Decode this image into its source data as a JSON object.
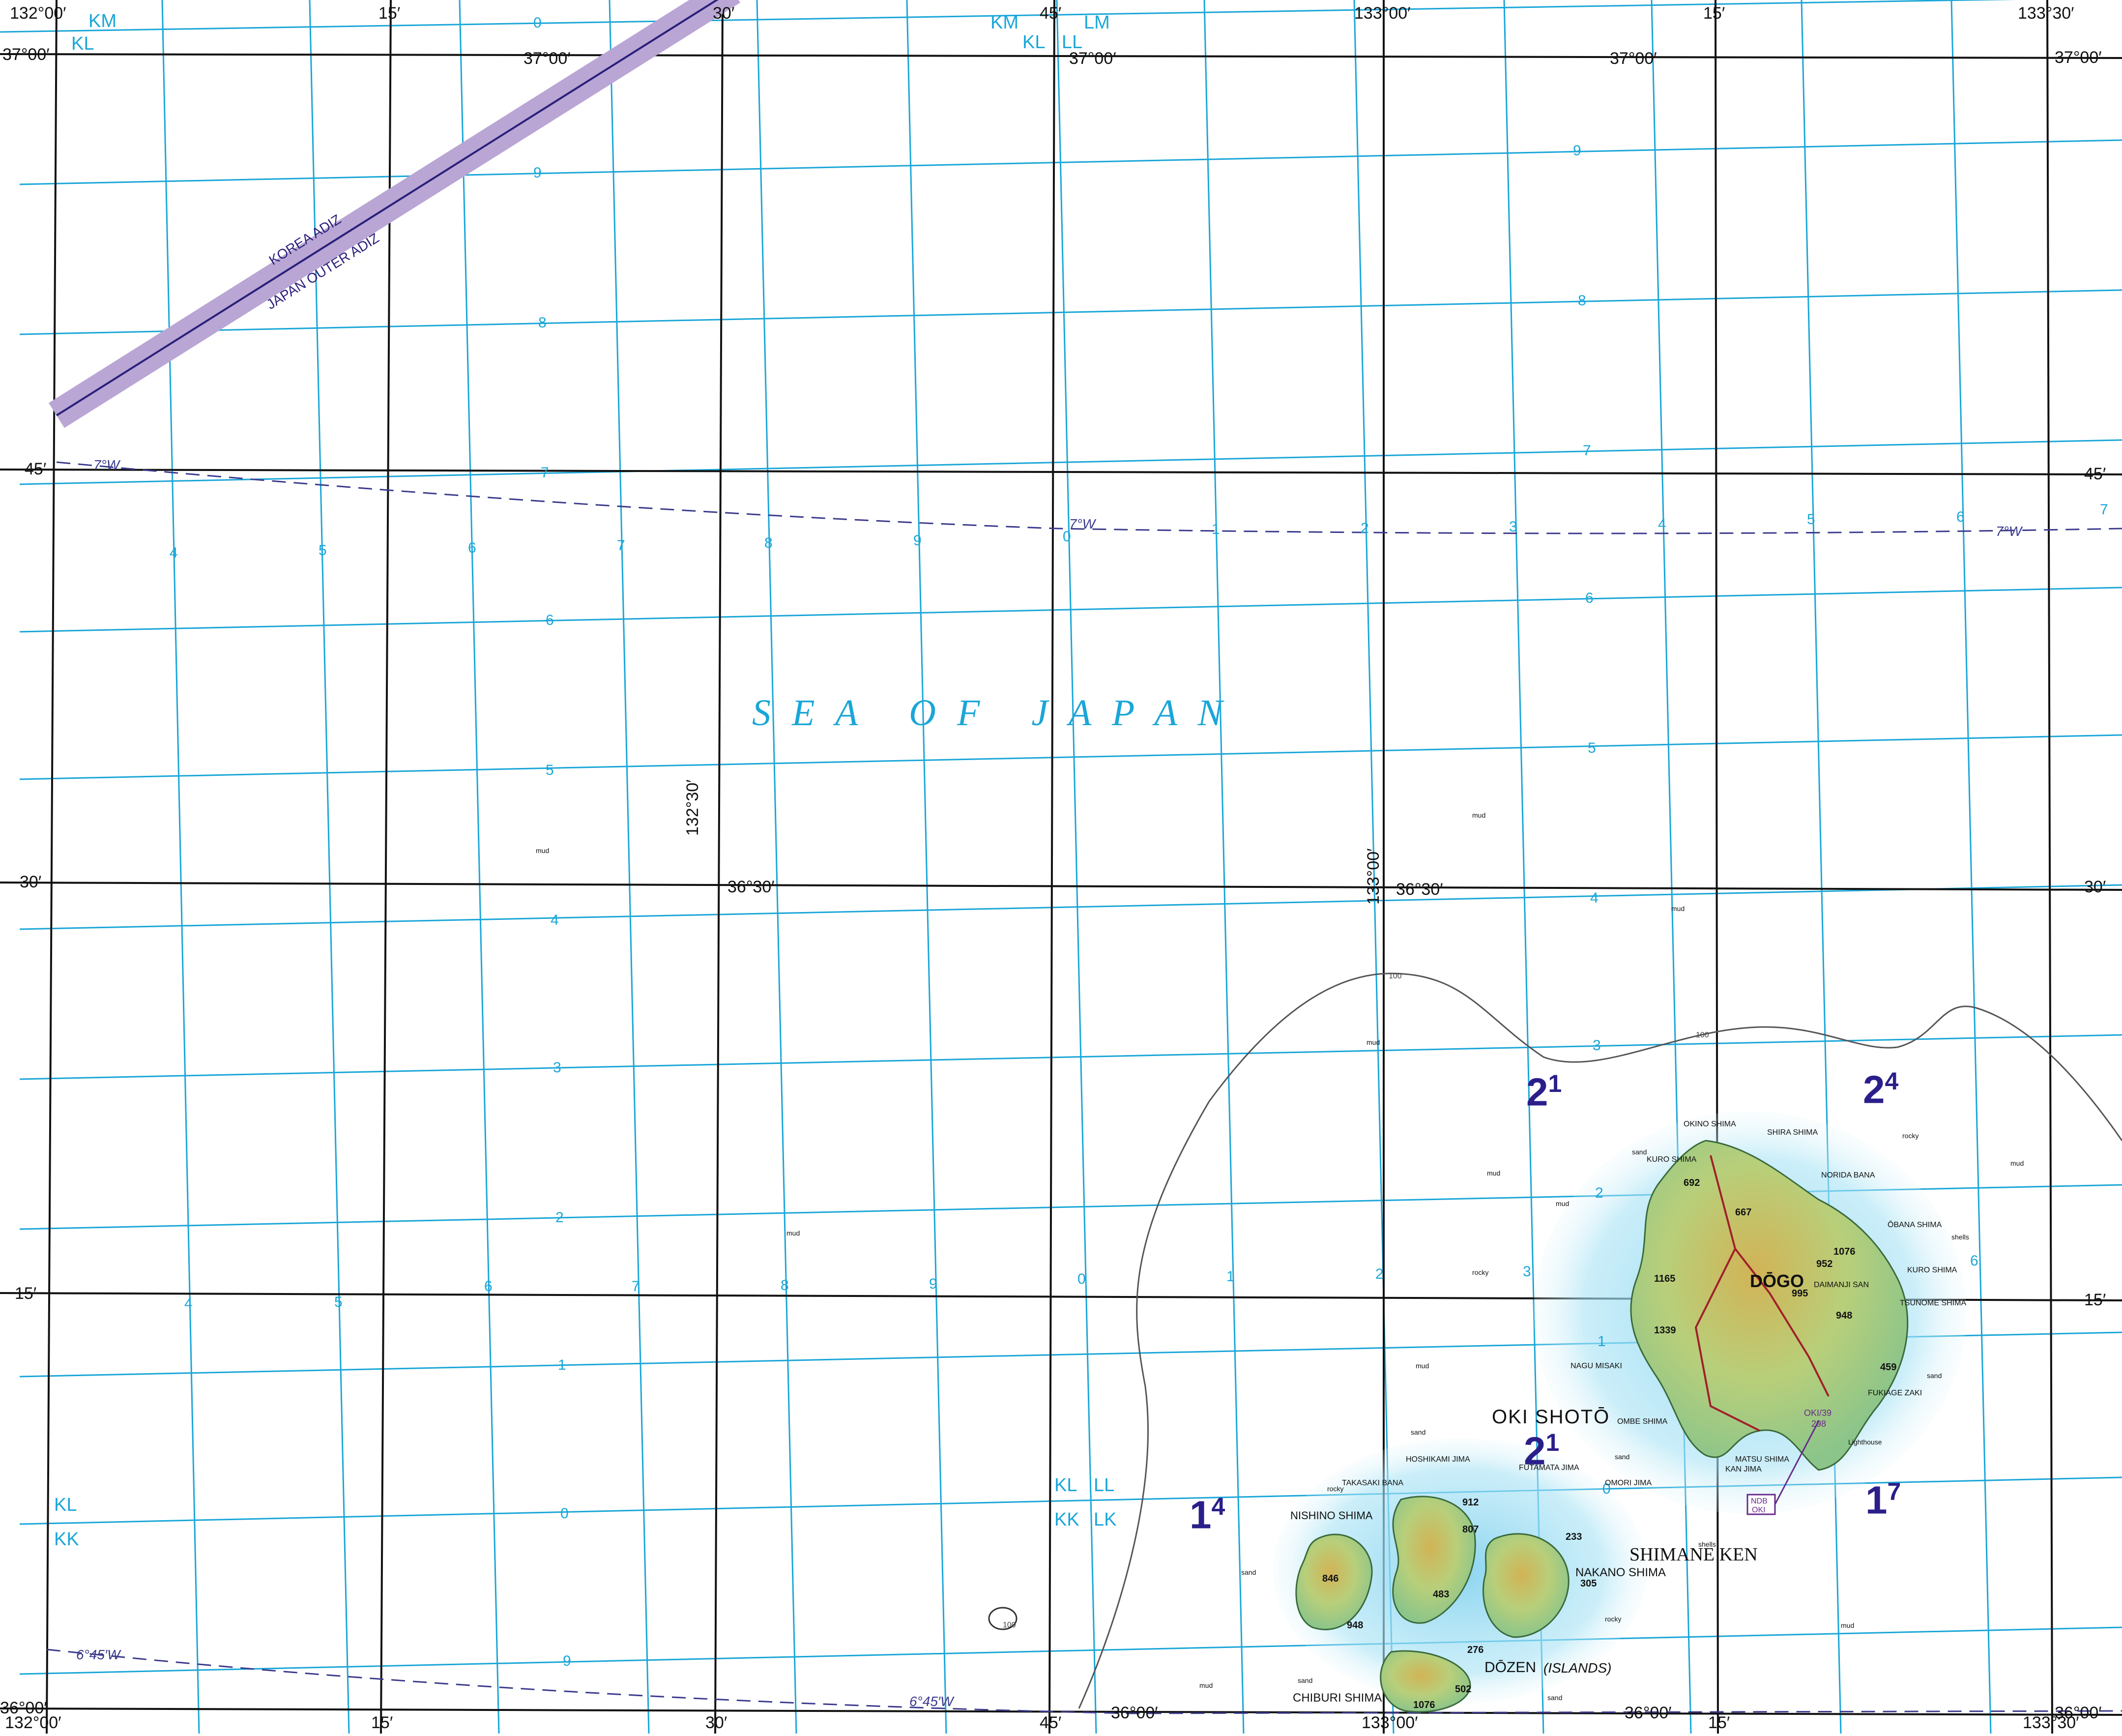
{
  "sea_label": "S E A   O F   J A P A N",
  "adiz": {
    "korea": "KOREA  ADIZ",
    "japan": "JAPAN  OUTER  ADIZ"
  },
  "magnetic_variation": {
    "seven_w": "7°W",
    "six45_w": "6°45′W"
  },
  "grid_zone_labels": {
    "km": "KM",
    "kl": "KL",
    "lm": "LM",
    "ll": "LL",
    "kk": "KK",
    "lk": "LK"
  },
  "lon_top": [
    "132°00′",
    "15′",
    "30′",
    "45′",
    "133°00′",
    "15′",
    "133°30′"
  ],
  "lon_bottom": [
    "132°00′",
    "15′",
    "30′",
    "45′",
    "133°00′",
    "15′",
    "133°30′"
  ],
  "lat_left": [
    "37°00′",
    "45′",
    "30′",
    "15′",
    "36°00′"
  ],
  "lat_right": [
    "37°00′",
    "45′",
    "30′",
    "15′",
    "36°00′"
  ],
  "lat_inner": [
    "37°00′",
    "36°30′",
    "36°00′"
  ],
  "lon_inner": [
    "132°30′",
    "133°00′"
  ],
  "grid_numbers": {
    "rows": [
      "0",
      "9",
      "8",
      "7",
      "6",
      "5",
      "4",
      "3",
      "2",
      "1",
      "0",
      "9"
    ],
    "cols": [
      "4",
      "5",
      "6",
      "7",
      "8",
      "9",
      "0",
      "1",
      "2",
      "3",
      "4",
      "5",
      "6",
      "7"
    ]
  },
  "place_names": {
    "oki_shoto": "OKI  SHOTŌ",
    "dogo": "DŌGO",
    "dozen": "DŌZEN",
    "dozen_islands": "(ISLANDS)",
    "shimane_ken": "SHIMANE  KEN",
    "nishino_shima": "NISHINO  SHIMA",
    "nakano_shima": "NAKANO  SHIMA",
    "chiburi_shima": "CHIBURI  SHIMA",
    "shira_shima": "SHIRA SHIMA",
    "okino_shima": "OKINO SHIMA",
    "kuro_shima": "KURO SHIMA",
    "norida_bana": "NORIDA BANA",
    "obana_shima": "ŌBANA SHIMA",
    "tsuno_shima": "TSUNOME SHIMA",
    "fukiage_zaki": "FUKIAGE ZAKI",
    "omori_jima": "OMORI JIMA",
    "futamata_jima": "FUTAMATA JIMA",
    "hoshikami_jima": "HOSHIKAMI JIMA",
    "takasaki_bana": "TAKASAKI BANA",
    "nagu_misaki": "NAGU MISAKI",
    "ombe_shima": "OMBE SHIMA",
    "kan_jima": "KAN JIMA",
    "matsu_shima": "MATSU SHIMA",
    "daimanji_san": "DAIMANJI SAN"
  },
  "elevations": {
    "e1": "1076",
    "e2": "952",
    "e3": "995",
    "e4": "948",
    "e5": "1339",
    "e6": "1165",
    "e7": "692",
    "e8": "667",
    "e9": "459",
    "e10": "912",
    "e11": "846",
    "e12": "948",
    "e13": "483",
    "e14": "807",
    "e15": "233",
    "e16": "305",
    "e17": "502",
    "e18": "276",
    "e19": "1076"
  },
  "bottom_notes": {
    "mud": "mud",
    "rocky": "rocky",
    "sand": "sand",
    "shells": "shells"
  },
  "contour_label": "100",
  "navaid": {
    "name": "OKI/39",
    "freq": "298",
    "ndb": "NDB",
    "ndb_id": "OKI"
  },
  "lighthouse": "Lighthouse",
  "sheet_numbers": {
    "a": "2",
    "a_sup": "1",
    "b": "2",
    "b_sup": "4",
    "c": "2",
    "c_sup": "1",
    "d": "1",
    "d_sup": "4",
    "e": "1",
    "e_sup": "7"
  },
  "colors": {
    "grid": "#1aa6d8",
    "graticule": "#111111",
    "adiz_band": "#b9a6d4",
    "adiz_line": "#2a1f7a",
    "isogonic": "#3b3a8c",
    "land": "#d9c86a",
    "land_low": "#9cc27b",
    "shallow": "#9fdcef"
  }
}
